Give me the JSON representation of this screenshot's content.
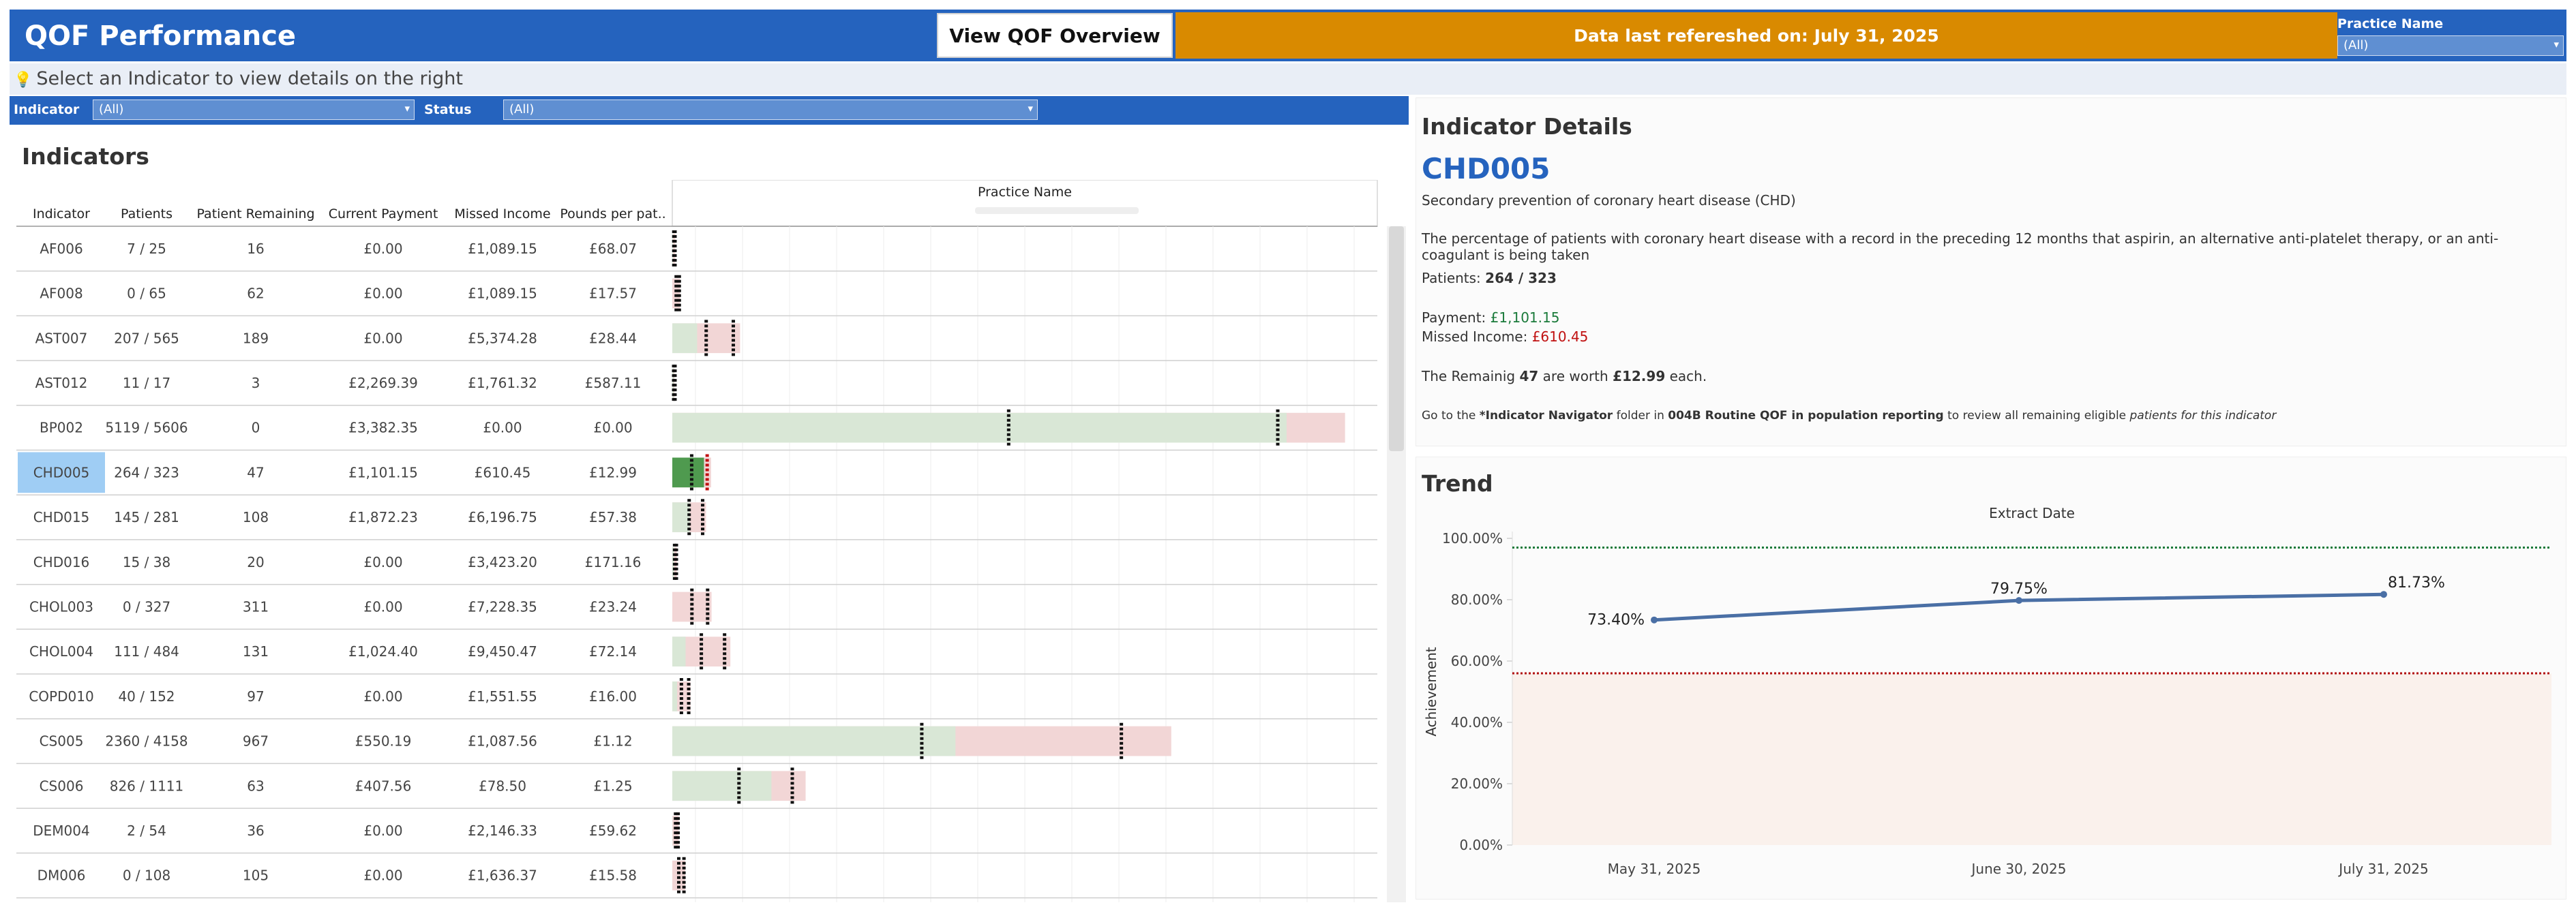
{
  "header": {
    "title": "QOF Performance",
    "overview_button": "View QOF Overview",
    "refresh_text": "Data last refereshed on: July 31, 2025",
    "practice_label": "Practice Name",
    "practice_value": "(All)"
  },
  "hint": "Select an Indicator to view details on the right",
  "filters": {
    "indicator_label": "Indicator",
    "indicator_value": "(All)",
    "status_label": "Status",
    "status_value": "(All)"
  },
  "indicators": {
    "title": "Indicators",
    "columns": [
      "Indicator",
      "Patients",
      "Patient Remaining",
      "Current Payment",
      "Missed Income",
      "Pounds per pat.."
    ],
    "bar_header": "Practice Name",
    "selected": "CHD005",
    "rows": [
      {
        "code": "AF006",
        "patients": "7 / 25",
        "remaining": "16",
        "payment": "£0.00",
        "missed": "£1,089.15",
        "ppp": "£68.07"
      },
      {
        "code": "AF008",
        "patients": "0 / 65",
        "remaining": "62",
        "payment": "£0.00",
        "missed": "£1,089.15",
        "ppp": "£17.57"
      },
      {
        "code": "AST007",
        "patients": "207 / 565",
        "remaining": "189",
        "payment": "£0.00",
        "missed": "£5,374.28",
        "ppp": "£28.44"
      },
      {
        "code": "AST012",
        "patients": "11 / 17",
        "remaining": "3",
        "payment": "£2,269.39",
        "missed": "£1,761.32",
        "ppp": "£587.11"
      },
      {
        "code": "BP002",
        "patients": "5119 / 5606",
        "remaining": "0",
        "payment": "£3,382.35",
        "missed": "£0.00",
        "ppp": "£0.00"
      },
      {
        "code": "CHD005",
        "patients": "264 / 323",
        "remaining": "47",
        "payment": "£1,101.15",
        "missed": "£610.45",
        "ppp": "£12.99"
      },
      {
        "code": "CHD015",
        "patients": "145 / 281",
        "remaining": "108",
        "payment": "£1,872.23",
        "missed": "£6,196.75",
        "ppp": "£57.38"
      },
      {
        "code": "CHD016",
        "patients": "15 / 38",
        "remaining": "20",
        "payment": "£0.00",
        "missed": "£3,423.20",
        "ppp": "£171.16"
      },
      {
        "code": "CHOL003",
        "patients": "0 / 327",
        "remaining": "311",
        "payment": "£0.00",
        "missed": "£7,228.35",
        "ppp": "£23.24"
      },
      {
        "code": "CHOL004",
        "patients": "111 / 484",
        "remaining": "131",
        "payment": "£1,024.40",
        "missed": "£9,450.47",
        "ppp": "£72.14"
      },
      {
        "code": "COPD010",
        "patients": "40 / 152",
        "remaining": "97",
        "payment": "£0.00",
        "missed": "£1,551.55",
        "ppp": "£16.00"
      },
      {
        "code": "CS005",
        "patients": "2360 / 4158",
        "remaining": "967",
        "payment": "£550.19",
        "missed": "£1,087.56",
        "ppp": "£1.12"
      },
      {
        "code": "CS006",
        "patients": "826 / 1111",
        "remaining": "63",
        "payment": "£407.56",
        "missed": "£78.50",
        "ppp": "£1.25"
      },
      {
        "code": "DEM004",
        "patients": "2 / 54",
        "remaining": "36",
        "payment": "£0.00",
        "missed": "£2,146.33",
        "ppp": "£59.62"
      },
      {
        "code": "DM006",
        "patients": "0 / 108",
        "remaining": "105",
        "payment": "£0.00",
        "missed": "£1,636.37",
        "ppp": "£15.58"
      }
    ]
  },
  "details": {
    "title": "Indicator Details",
    "code": "CHD005",
    "subtitle": "Secondary prevention of coronary heart disease (CHD)",
    "description": "The percentage of patients with coronary heart disease with a record in the preceding 12 months that aspirin, an alternative anti-platelet therapy, or an anti-coagulant is being taken",
    "patients_label": "Patients:",
    "patients_value": "264 / 323",
    "payment_label": "Payment:",
    "payment_value": "£1,101.15",
    "missed_label": "Missed Income:",
    "missed_value": "£610.45",
    "remain_pre": "The Remainig",
    "remain_count": "47",
    "remain_mid": "are worth",
    "remain_value": "£12.99",
    "remain_post": "each.",
    "nav_pre": "Go to the",
    "nav_folder": "*Indicator Navigator",
    "nav_mid": "folder in",
    "nav_location": "004B Routine QOF in population reporting",
    "nav_mid2": "to review all remaining eligible",
    "nav_post": "patients for this indicator"
  },
  "trend": {
    "title": "Trend",
    "top_label": "Extract Date",
    "y_label": "Achievement"
  },
  "chart_data": {
    "type": "line",
    "x": [
      "May 31, 2025",
      "June 30, 2025",
      "July 31, 2025"
    ],
    "series": [
      {
        "values": [
          73.4,
          79.75,
          81.73
        ],
        "labels": [
          "73.40%",
          "79.75%",
          "81.73%"
        ]
      }
    ],
    "y_ticks": [
      "0.00%",
      "20.00%",
      "40.00%",
      "60.00%",
      "80.00%",
      "100.00%"
    ],
    "ylim": [
      0,
      100
    ],
    "reference_lines": [
      97,
      56
    ],
    "xlabel": "Extract Date",
    "ylabel": "Achievement",
    "colors": {
      "line": "#4a6fa5",
      "upper": "#1a7a3a",
      "lower": "#b01010",
      "band": "#faf1ec"
    }
  }
}
